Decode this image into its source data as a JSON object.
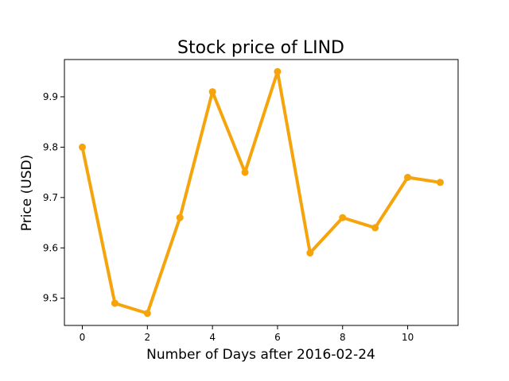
{
  "chart_data": {
    "type": "line",
    "title": "Stock price of LIND",
    "xlabel": "Number of Days after 2016-02-24",
    "ylabel": "Price (USD)",
    "x": [
      0,
      1,
      2,
      3,
      4,
      5,
      6,
      7,
      8,
      9,
      10,
      11
    ],
    "series": [
      {
        "values": [
          9.8,
          9.49,
          9.47,
          9.66,
          9.91,
          9.75,
          9.95,
          9.59,
          9.66,
          9.64,
          9.74,
          9.73
        ],
        "color": "#f5a40c"
      }
    ],
    "xlim": [
      -0.55,
      11.55
    ],
    "ylim": [
      9.446,
      9.974
    ],
    "xticks": [
      0,
      2,
      4,
      6,
      8,
      10
    ],
    "xtick_labels": [
      "0",
      "2",
      "4",
      "6",
      "8",
      "10"
    ],
    "yticks": [
      9.5,
      9.6,
      9.7,
      9.8,
      9.9
    ],
    "ytick_labels": [
      "9.5",
      "9.6",
      "9.7",
      "9.8",
      "9.9"
    ],
    "grid": false,
    "legend": "none"
  }
}
